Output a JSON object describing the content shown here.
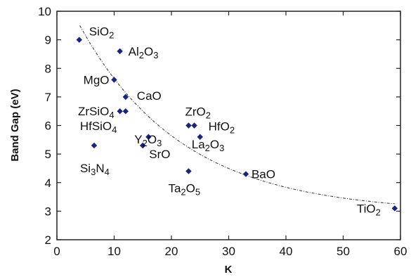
{
  "chart_data": {
    "type": "scatter",
    "title": "",
    "xlabel": "K",
    "ylabel": "Band Gap (eV)",
    "xlim": [
      0,
      60
    ],
    "ylim": [
      2,
      10
    ],
    "xticks": [
      0,
      10,
      20,
      30,
      40,
      50,
      60
    ],
    "yticks": [
      2,
      3,
      4,
      5,
      6,
      7,
      8,
      9,
      10
    ],
    "grid": false,
    "marker_color": "#1a237e",
    "trend_line_style": "dash-dot",
    "points": [
      {
        "label": "SiO",
        "sub": "2",
        "rest": "",
        "x": 3.9,
        "y": 9.0
      },
      {
        "label": "Al",
        "sub": "2",
        "rest": "O",
        "sub2": "3",
        "x": 11.0,
        "y": 8.6
      },
      {
        "label": "MgO",
        "x": 10.0,
        "y": 7.6
      },
      {
        "label": "CaO",
        "x": 12.0,
        "y": 7.0
      },
      {
        "label": "ZrSiO",
        "sub": "4",
        "x": 11.0,
        "y": 6.5
      },
      {
        "label": "",
        "x": 12.0,
        "y": 6.5
      },
      {
        "label": "HfSiO",
        "sub": "4",
        "x": 16.0,
        "y": 5.6
      },
      {
        "label": "Y",
        "sub": "2",
        "rest": "O",
        "sub2": "3",
        "x": 15.0,
        "y": 5.3
      },
      {
        "label": "ZrO",
        "sub": "2",
        "x": 23.0,
        "y": 6.0
      },
      {
        "label": "HfO",
        "sub": "2",
        "x": 24.0,
        "y": 6.0
      },
      {
        "label": "La",
        "sub": "2",
        "rest": "O",
        "sub2": "3",
        "x": 25.0,
        "y": 5.6
      },
      {
        "label": "SrO",
        "x": 15.0,
        "y": 5.3
      },
      {
        "label": "Si",
        "sub": "3",
        "rest": "N",
        "sub2": "4",
        "x": 6.5,
        "y": 5.3
      },
      {
        "label": "Ta",
        "sub": "2",
        "rest": "O",
        "sub2": "5",
        "x": 23.0,
        "y": 4.4
      },
      {
        "label": "BaO",
        "x": 33.0,
        "y": 4.3
      },
      {
        "label": "TiO",
        "sub": "2",
        "x": 59.0,
        "y": 3.1
      }
    ]
  }
}
